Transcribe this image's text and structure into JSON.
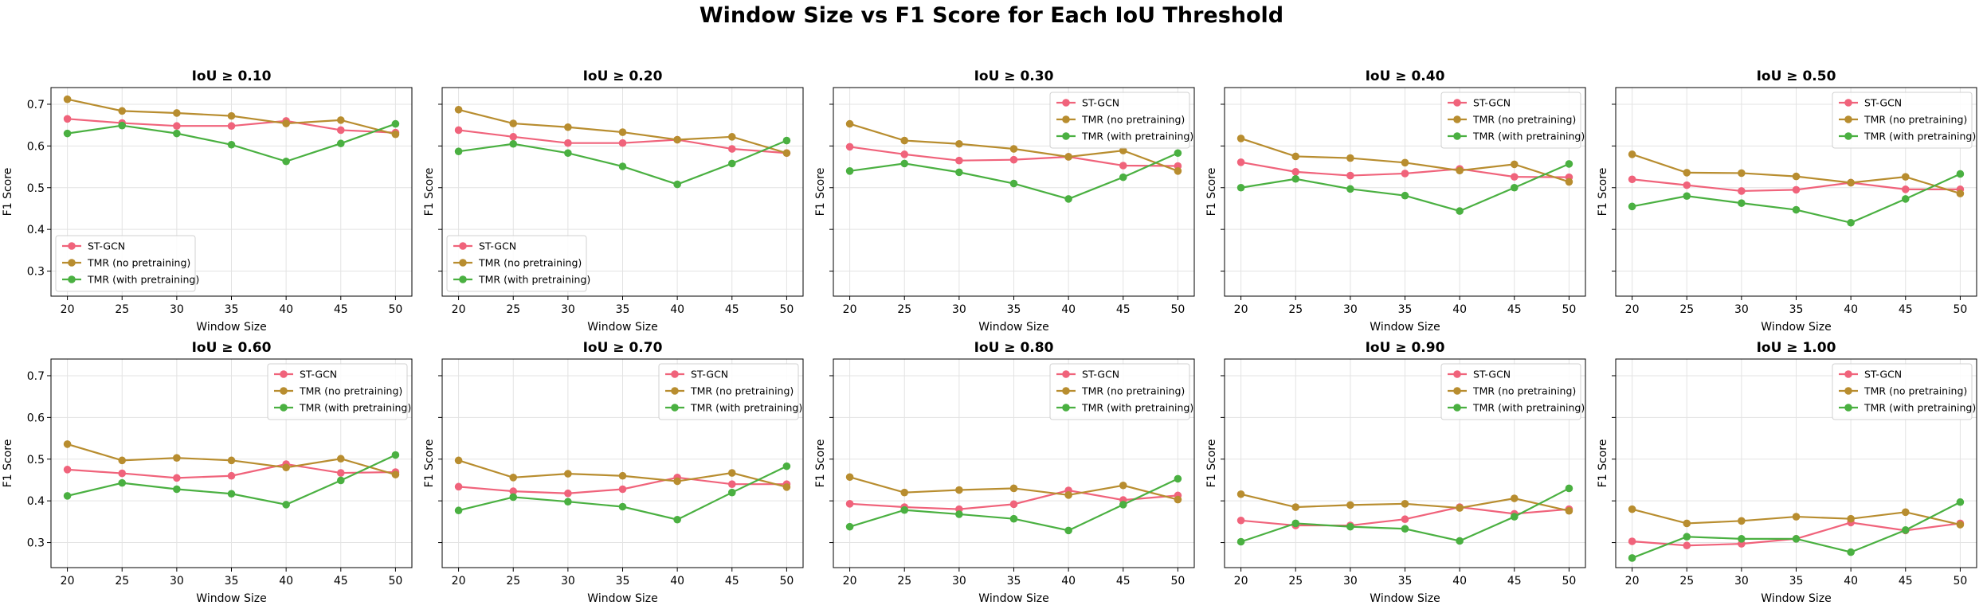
{
  "suptitle": "Window Size vs F1 Score for Each IoU Threshold",
  "colors": {
    "ST-GCN": "#f0637b",
    "TMR (no pretraining)": "#b88d2f",
    "TMR (with pretraining)": "#4ab041"
  },
  "chart_data": [
    {
      "type": "line",
      "title": "IoU ≥ 0.10",
      "xlabel": "Window Size",
      "ylabel": "F1 Score",
      "x": [
        20,
        25,
        30,
        35,
        40,
        45,
        50
      ],
      "ylim": [
        0.24,
        0.74
      ],
      "yticks": [
        0.3,
        0.4,
        0.5,
        0.6,
        0.7
      ],
      "grid": true,
      "legend": "lower-left",
      "series": [
        {
          "name": "ST-GCN",
          "values": [
            0.665,
            0.655,
            0.648,
            0.648,
            0.66,
            0.638,
            0.632
          ]
        },
        {
          "name": "TMR (no pretraining)",
          "values": [
            0.712,
            0.684,
            0.679,
            0.672,
            0.654,
            0.662,
            0.628
          ]
        },
        {
          "name": "TMR (with pretraining)",
          "values": [
            0.63,
            0.649,
            0.63,
            0.603,
            0.563,
            0.606,
            0.653
          ]
        }
      ]
    },
    {
      "type": "line",
      "title": "IoU ≥ 0.20",
      "xlabel": "Window Size",
      "ylabel": "F1 Score",
      "x": [
        20,
        25,
        30,
        35,
        40,
        45,
        50
      ],
      "ylim": [
        0.24,
        0.74
      ],
      "yticks": [
        0.3,
        0.4,
        0.5,
        0.6,
        0.7
      ],
      "grid": true,
      "legend": "lower-left",
      "series": [
        {
          "name": "ST-GCN",
          "values": [
            0.638,
            0.622,
            0.607,
            0.607,
            0.615,
            0.593,
            0.583
          ]
        },
        {
          "name": "TMR (no pretraining)",
          "values": [
            0.687,
            0.654,
            0.645,
            0.633,
            0.615,
            0.622,
            0.583
          ]
        },
        {
          "name": "TMR (with pretraining)",
          "values": [
            0.587,
            0.605,
            0.583,
            0.551,
            0.508,
            0.558,
            0.613
          ]
        }
      ]
    },
    {
      "type": "line",
      "title": "IoU ≥ 0.30",
      "xlabel": "Window Size",
      "ylabel": "F1 Score",
      "x": [
        20,
        25,
        30,
        35,
        40,
        45,
        50
      ],
      "ylim": [
        0.24,
        0.74
      ],
      "yticks": [
        0.3,
        0.4,
        0.5,
        0.6,
        0.7
      ],
      "grid": true,
      "legend": "upper-right",
      "series": [
        {
          "name": "ST-GCN",
          "values": [
            0.598,
            0.58,
            0.565,
            0.567,
            0.574,
            0.553,
            0.552
          ]
        },
        {
          "name": "TMR (no pretraining)",
          "values": [
            0.653,
            0.613,
            0.605,
            0.593,
            0.574,
            0.589,
            0.54
          ]
        },
        {
          "name": "TMR (with pretraining)",
          "values": [
            0.54,
            0.558,
            0.537,
            0.51,
            0.473,
            0.525,
            0.583
          ]
        }
      ]
    },
    {
      "type": "line",
      "title": "IoU ≥ 0.40",
      "xlabel": "Window Size",
      "ylabel": "F1 Score",
      "x": [
        20,
        25,
        30,
        35,
        40,
        45,
        50
      ],
      "ylim": [
        0.24,
        0.74
      ],
      "yticks": [
        0.3,
        0.4,
        0.5,
        0.6,
        0.7
      ],
      "grid": true,
      "legend": "upper-right",
      "series": [
        {
          "name": "ST-GCN",
          "values": [
            0.561,
            0.538,
            0.529,
            0.534,
            0.545,
            0.526,
            0.525
          ]
        },
        {
          "name": "TMR (no pretraining)",
          "values": [
            0.618,
            0.575,
            0.571,
            0.56,
            0.541,
            0.556,
            0.514
          ]
        },
        {
          "name": "TMR (with pretraining)",
          "values": [
            0.5,
            0.521,
            0.497,
            0.481,
            0.444,
            0.5,
            0.557
          ]
        }
      ]
    },
    {
      "type": "line",
      "title": "IoU ≥ 0.50",
      "xlabel": "Window Size",
      "ylabel": "F1 Score",
      "x": [
        20,
        25,
        30,
        35,
        40,
        45,
        50
      ],
      "ylim": [
        0.24,
        0.74
      ],
      "yticks": [
        0.3,
        0.4,
        0.5,
        0.6,
        0.7
      ],
      "grid": true,
      "legend": "upper-right",
      "series": [
        {
          "name": "ST-GCN",
          "values": [
            0.52,
            0.506,
            0.492,
            0.495,
            0.512,
            0.496,
            0.496
          ]
        },
        {
          "name": "TMR (no pretraining)",
          "values": [
            0.58,
            0.536,
            0.535,
            0.527,
            0.512,
            0.526,
            0.486
          ]
        },
        {
          "name": "TMR (with pretraining)",
          "values": [
            0.455,
            0.48,
            0.463,
            0.447,
            0.416,
            0.473,
            0.533
          ]
        }
      ]
    },
    {
      "type": "line",
      "title": "IoU ≥ 0.60",
      "xlabel": "Window Size",
      "ylabel": "F1 Score",
      "x": [
        20,
        25,
        30,
        35,
        40,
        45,
        50
      ],
      "ylim": [
        0.24,
        0.74
      ],
      "yticks": [
        0.3,
        0.4,
        0.5,
        0.6,
        0.7
      ],
      "grid": true,
      "legend": "upper-right",
      "series": [
        {
          "name": "ST-GCN",
          "values": [
            0.475,
            0.466,
            0.455,
            0.46,
            0.488,
            0.467,
            0.469
          ]
        },
        {
          "name": "TMR (no pretraining)",
          "values": [
            0.536,
            0.497,
            0.503,
            0.497,
            0.48,
            0.501,
            0.463
          ]
        },
        {
          "name": "TMR (with pretraining)",
          "values": [
            0.412,
            0.443,
            0.428,
            0.417,
            0.391,
            0.449,
            0.51
          ]
        }
      ]
    },
    {
      "type": "line",
      "title": "IoU ≥ 0.70",
      "xlabel": "Window Size",
      "ylabel": "F1 Score",
      "x": [
        20,
        25,
        30,
        35,
        40,
        45,
        50
      ],
      "ylim": [
        0.24,
        0.74
      ],
      "yticks": [
        0.3,
        0.4,
        0.5,
        0.6,
        0.7
      ],
      "grid": true,
      "legend": "upper-right",
      "series": [
        {
          "name": "ST-GCN",
          "values": [
            0.434,
            0.423,
            0.418,
            0.428,
            0.456,
            0.44,
            0.44
          ]
        },
        {
          "name": "TMR (no pretraining)",
          "values": [
            0.497,
            0.456,
            0.465,
            0.46,
            0.447,
            0.467,
            0.433
          ]
        },
        {
          "name": "TMR (with pretraining)",
          "values": [
            0.377,
            0.409,
            0.398,
            0.386,
            0.355,
            0.42,
            0.483
          ]
        }
      ]
    },
    {
      "type": "line",
      "title": "IoU ≥ 0.80",
      "xlabel": "Window Size",
      "ylabel": "F1 Score",
      "x": [
        20,
        25,
        30,
        35,
        40,
        45,
        50
      ],
      "ylim": [
        0.24,
        0.74
      ],
      "yticks": [
        0.3,
        0.4,
        0.5,
        0.6,
        0.7
      ],
      "grid": true,
      "legend": "upper-right",
      "series": [
        {
          "name": "ST-GCN",
          "values": [
            0.393,
            0.385,
            0.38,
            0.392,
            0.425,
            0.402,
            0.413
          ]
        },
        {
          "name": "TMR (no pretraining)",
          "values": [
            0.457,
            0.42,
            0.426,
            0.43,
            0.414,
            0.437,
            0.403
          ]
        },
        {
          "name": "TMR (with pretraining)",
          "values": [
            0.338,
            0.378,
            0.368,
            0.357,
            0.329,
            0.391,
            0.453
          ]
        }
      ]
    },
    {
      "type": "line",
      "title": "IoU ≥ 0.90",
      "xlabel": "Window Size",
      "ylabel": "F1 Score",
      "x": [
        20,
        25,
        30,
        35,
        40,
        45,
        50
      ],
      "ylim": [
        0.24,
        0.74
      ],
      "yticks": [
        0.3,
        0.4,
        0.5,
        0.6,
        0.7
      ],
      "grid": true,
      "legend": "upper-right",
      "series": [
        {
          "name": "ST-GCN",
          "values": [
            0.353,
            0.341,
            0.341,
            0.356,
            0.385,
            0.369,
            0.38
          ]
        },
        {
          "name": "TMR (no pretraining)",
          "values": [
            0.416,
            0.385,
            0.39,
            0.393,
            0.383,
            0.406,
            0.376
          ]
        },
        {
          "name": "TMR (with pretraining)",
          "values": [
            0.302,
            0.346,
            0.338,
            0.333,
            0.304,
            0.362,
            0.43
          ]
        }
      ]
    },
    {
      "type": "line",
      "title": "IoU ≥ 1.00",
      "xlabel": "Window Size",
      "ylabel": "F1 Score",
      "x": [
        20,
        25,
        30,
        35,
        40,
        45,
        50
      ],
      "ylim": [
        0.24,
        0.74
      ],
      "yticks": [
        0.3,
        0.4,
        0.5,
        0.6,
        0.7
      ],
      "grid": true,
      "legend": "upper-right",
      "series": [
        {
          "name": "ST-GCN",
          "values": [
            0.303,
            0.293,
            0.297,
            0.309,
            0.348,
            0.329,
            0.346
          ]
        },
        {
          "name": "TMR (no pretraining)",
          "values": [
            0.38,
            0.346,
            0.352,
            0.362,
            0.357,
            0.373,
            0.343
          ]
        },
        {
          "name": "TMR (with pretraining)",
          "values": [
            0.263,
            0.314,
            0.309,
            0.309,
            0.277,
            0.33,
            0.397
          ]
        }
      ]
    }
  ]
}
